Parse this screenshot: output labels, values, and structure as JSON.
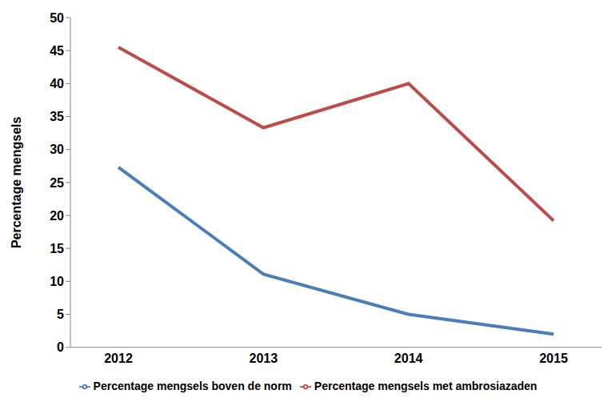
{
  "chart_data": {
    "type": "line",
    "y_label": "Percentage mengsels",
    "categories": [
      "2012",
      "2013",
      "2014",
      "2015"
    ],
    "series": [
      {
        "name": "Percentage mengsels boven de norm",
        "color": "#4a7ebb",
        "values": [
          27.3,
          11.1,
          5,
          2
        ]
      },
      {
        "name": "Percentage mengsels met ambrosiazaden",
        "color": "#be4b48",
        "values": [
          45.5,
          33.3,
          40,
          19.2
        ]
      }
    ],
    "ylim": [
      0,
      50
    ],
    "yticks": [
      0,
      5,
      10,
      15,
      20,
      25,
      30,
      35,
      40,
      45,
      50
    ],
    "grid": false,
    "legend": "bottom",
    "marker": "none"
  }
}
